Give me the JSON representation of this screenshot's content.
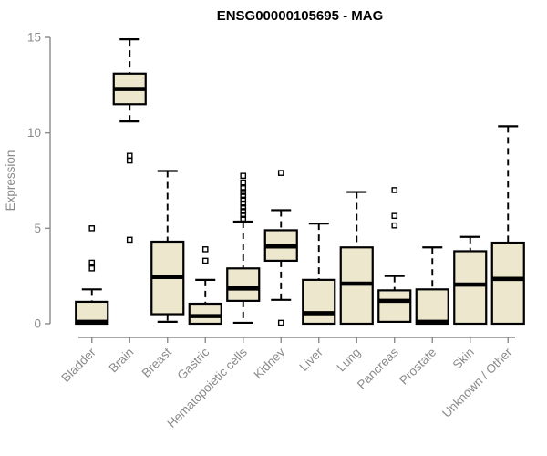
{
  "chart_data": {
    "type": "boxplot",
    "title": "ENSG00000105695 - MAG",
    "xlabel": "",
    "ylabel": "Expression",
    "ylim": [
      0,
      15
    ],
    "yticks": [
      0,
      5,
      10,
      15
    ],
    "grid": false,
    "legend": "none",
    "colors": {
      "box_fill": "#ece7cd",
      "box_stroke": "#000000",
      "axis": "#8a8a8a",
      "labels": "#8a8a8a",
      "title": "#000000",
      "background": "#ffffff"
    },
    "categories": [
      "Bladder",
      "Brain",
      "Breast",
      "Gastric",
      "Hematopoietic cells",
      "Kidney",
      "Liver",
      "Lung",
      "Pancreas",
      "Prostate",
      "Skin",
      "Unknown / Other"
    ],
    "series": [
      {
        "name": "Bladder",
        "whisker_low": 0,
        "q1": 0,
        "median": 0.1,
        "q3": 1.15,
        "whisker_high": 1.8,
        "outliers": [
          2.9,
          3.2,
          5.0
        ]
      },
      {
        "name": "Brain",
        "whisker_low": 10.6,
        "q1": 11.5,
        "median": 12.3,
        "q3": 13.1,
        "whisker_high": 14.9,
        "outliers": [
          4.4,
          8.55,
          8.8
        ]
      },
      {
        "name": "Breast",
        "whisker_low": 0.1,
        "q1": 0.5,
        "median": 2.45,
        "q3": 4.3,
        "whisker_high": 8.0,
        "outliers": []
      },
      {
        "name": "Gastric",
        "whisker_low": 0,
        "q1": 0,
        "median": 0.4,
        "q3": 1.05,
        "whisker_high": 2.3,
        "outliers": [
          3.3,
          3.9
        ]
      },
      {
        "name": "Hematopoietic cells",
        "whisker_low": 0.05,
        "q1": 1.2,
        "median": 1.85,
        "q3": 2.9,
        "whisker_high": 5.35,
        "outliers": [
          5.5,
          5.7,
          5.9,
          6.1,
          6.3,
          6.5,
          6.7,
          6.9,
          7.1,
          7.4,
          7.75
        ]
      },
      {
        "name": "Kidney",
        "whisker_low": 1.25,
        "q1": 3.3,
        "median": 4.05,
        "q3": 4.9,
        "whisker_high": 5.95,
        "outliers": [
          0.05,
          7.9
        ]
      },
      {
        "name": "Liver",
        "whisker_low": 0,
        "q1": 0,
        "median": 0.55,
        "q3": 2.3,
        "whisker_high": 5.25,
        "outliers": []
      },
      {
        "name": "Lung",
        "whisker_low": 0,
        "q1": 0,
        "median": 2.1,
        "q3": 4.0,
        "whisker_high": 6.9,
        "outliers": []
      },
      {
        "name": "Pancreas",
        "whisker_low": 0.05,
        "q1": 0.1,
        "median": 1.2,
        "q3": 1.75,
        "whisker_high": 2.5,
        "outliers": [
          5.15,
          5.65,
          7.0
        ]
      },
      {
        "name": "Prostate",
        "whisker_low": 0,
        "q1": 0,
        "median": 0.1,
        "q3": 1.8,
        "whisker_high": 4.0,
        "outliers": []
      },
      {
        "name": "Skin",
        "whisker_low": 0,
        "q1": 0,
        "median": 2.05,
        "q3": 3.8,
        "whisker_high": 4.55,
        "outliers": []
      },
      {
        "name": "Unknown / Other",
        "whisker_low": 0,
        "q1": 0,
        "median": 2.35,
        "q3": 4.25,
        "whisker_high": 10.35,
        "outliers": []
      }
    ]
  }
}
